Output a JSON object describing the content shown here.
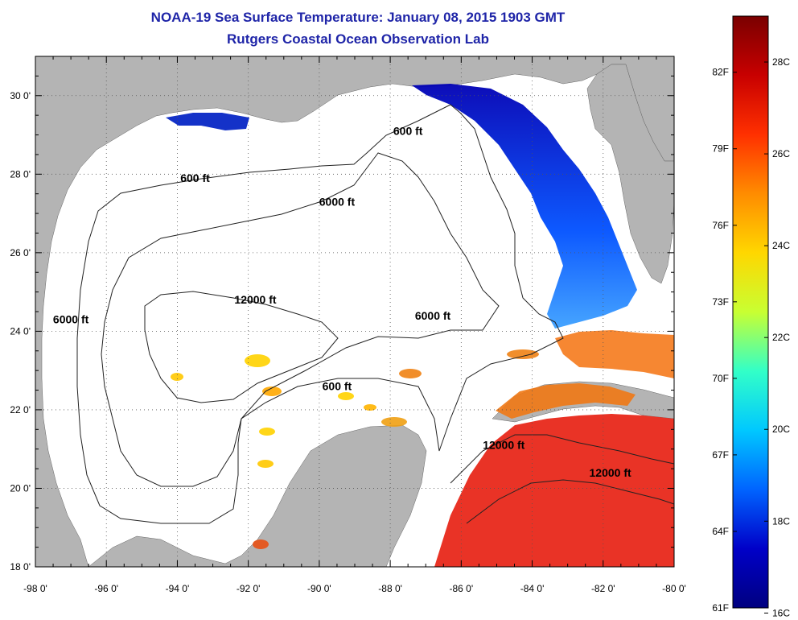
{
  "title": "NOAA-19 Sea Surface Temperature:  January 08, 2015 1903 GMT",
  "subtitle": "Rutgers Coastal Ocean Observation Lab",
  "axes": {
    "lon_labels": [
      "-98 0'",
      "-96 0'",
      "-94 0'",
      "-92 0'",
      "-90 0'",
      "-88 0'",
      "-86 0'",
      "-84 0'",
      "-82 0'",
      "-80 0'"
    ],
    "lat_labels": [
      "30 0'",
      "28 0'",
      "26 0'",
      "24 0'",
      "22 0'",
      "20 0'",
      "18 0'"
    ]
  },
  "contour_labels": [
    {
      "text": "600 ft",
      "lon": -87.5,
      "lat": 29.0
    },
    {
      "text": "600 ft",
      "lon": -93.5,
      "lat": 27.8
    },
    {
      "text": "6000 ft",
      "lon": -89.5,
      "lat": 27.2
    },
    {
      "text": "12000 ft",
      "lon": -91.8,
      "lat": 24.7
    },
    {
      "text": "6000 ft",
      "lon": -97.0,
      "lat": 24.2
    },
    {
      "text": "6000 ft",
      "lon": -86.8,
      "lat": 24.3
    },
    {
      "text": "600 ft",
      "lon": -89.5,
      "lat": 22.5
    },
    {
      "text": "12000 ft",
      "lon": -84.8,
      "lat": 21.0
    },
    {
      "text": "12000 ft",
      "lon": -81.8,
      "lat": 20.3
    }
  ],
  "colorbar": {
    "f_labels": [
      "82F",
      "79F",
      "76F",
      "73F",
      "70F",
      "67F",
      "64F",
      "61F"
    ],
    "c_labels": [
      "28C",
      "26C",
      "24C",
      "22C",
      "20C",
      "18C",
      "16C"
    ],
    "colors": [
      "#7a0000",
      "#c80000",
      "#ff3000",
      "#ff8c00",
      "#ffd700",
      "#c8ff32",
      "#32ffc8",
      "#00c8ff",
      "#0064ff",
      "#0000c8",
      "#000080"
    ]
  },
  "colors": {
    "land": "#b4b4b4",
    "ocean": "#ffffff",
    "title": "#1f25a8",
    "cold": "#0032dc",
    "warm": "#e62814"
  }
}
